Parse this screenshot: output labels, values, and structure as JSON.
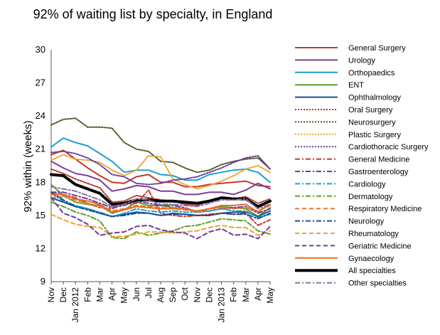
{
  "chart_data": {
    "type": "line",
    "title": "92% of waiting list by specialty, in England",
    "ylabel": "92% within (weeks)",
    "xlabel": "",
    "ylim": [
      9,
      30
    ],
    "yticks": [
      9,
      12,
      15,
      18,
      21,
      24,
      27,
      30
    ],
    "grid": false,
    "legend_position": "right",
    "x": [
      "Nov",
      "Dec",
      "Jan 2012",
      "Feb",
      "Mar",
      "Apr",
      "May",
      "Jun",
      "Jul",
      "Aug",
      "Sep",
      "Oct",
      "Nov",
      "Dec",
      "Jan 2013",
      "Feb",
      "Mar",
      "Apr",
      "May"
    ],
    "series": [
      {
        "name": "General Surgery",
        "color": "#c0392b",
        "dash": "solid",
        "width": 2,
        "values": [
          20.5,
          20.9,
          20.1,
          19.3,
          18.6,
          18.0,
          17.9,
          18.5,
          18.7,
          18.0,
          18.0,
          17.6,
          17.6,
          17.8,
          17.9,
          18.0,
          18.1,
          17.7,
          17.6
        ]
      },
      {
        "name": "Urology",
        "color": "#7d3c98",
        "dash": "solid",
        "width": 2,
        "values": [
          19.9,
          19.3,
          18.8,
          18.6,
          18.2,
          17.2,
          17.4,
          17.7,
          17.6,
          17.2,
          17.2,
          16.9,
          16.9,
          17.1,
          17.1,
          16.9,
          17.3,
          17.9,
          17.4
        ]
      },
      {
        "name": "Orthopaedics",
        "color": "#1f9ed1",
        "dash": "solid",
        "width": 2,
        "values": [
          21.2,
          22.0,
          21.6,
          21.3,
          20.6,
          19.9,
          18.9,
          19.1,
          19.1,
          18.7,
          18.6,
          18.2,
          18.2,
          18.7,
          18.9,
          19.1,
          19.2,
          18.9,
          18.0
        ]
      },
      {
        "name": "ENT",
        "color": "#5aa02c",
        "dash": "solid",
        "width": 2,
        "values": [
          17.8,
          16.8,
          16.2,
          16.0,
          15.9,
          15.2,
          15.5,
          16.2,
          15.9,
          15.9,
          15.7,
          15.6,
          15.4,
          15.6,
          15.8,
          15.7,
          15.6,
          14.9,
          15.7
        ]
      },
      {
        "name": "Ophthalmology",
        "color": "#1a4f8b",
        "dash": "solid",
        "width": 2,
        "values": [
          16.6,
          16.2,
          15.8,
          15.6,
          15.2,
          14.9,
          15.1,
          15.3,
          15.2,
          15.0,
          15.2,
          15.1,
          15.0,
          15.0,
          15.2,
          15.3,
          15.3,
          14.9,
          15.4
        ]
      },
      {
        "name": "Oral Surgery",
        "color": "#b03a2e",
        "dash": "dot",
        "width": 2,
        "values": [
          19.2,
          18.8,
          18.3,
          17.9,
          17.5,
          16.2,
          16.3,
          16.8,
          16.6,
          16.4,
          16.3,
          16.0,
          15.9,
          16.3,
          16.6,
          16.5,
          16.7,
          16.1,
          16.5
        ]
      },
      {
        "name": "Neurosurgery",
        "color": "#4d5a1e",
        "dash": "dot",
        "width": 2,
        "values": [
          23.2,
          23.7,
          23.8,
          23.0,
          23.0,
          22.9,
          21.6,
          21.0,
          20.8,
          19.9,
          19.8,
          19.3,
          18.9,
          19.1,
          19.6,
          19.9,
          20.1,
          20.2,
          19.2
        ]
      },
      {
        "name": "Plastic Surgery",
        "color": "#f0a22e",
        "dash": "dot",
        "width": 2,
        "values": [
          20.0,
          20.5,
          20.1,
          20.0,
          19.8,
          19.1,
          18.6,
          19.1,
          20.4,
          20.3,
          18.3,
          17.8,
          17.4,
          17.7,
          18.1,
          18.6,
          19.2,
          19.5,
          18.9
        ]
      },
      {
        "name": "Cardiothoracic Surgery",
        "color": "#6a3d9a",
        "dash": "dot",
        "width": 2,
        "values": [
          20.7,
          20.8,
          20.6,
          20.2,
          19.6,
          18.7,
          18.5,
          17.9,
          17.8,
          17.9,
          18.2,
          18.3,
          18.5,
          18.9,
          19.3,
          19.8,
          20.2,
          20.4,
          19.2
        ]
      },
      {
        "name": "General Medicine",
        "color": "#c0392b",
        "dash": "dashdot",
        "width": 2,
        "values": [
          17.0,
          16.9,
          16.6,
          16.1,
          15.7,
          15.6,
          16.0,
          16.1,
          17.3,
          15.2,
          15.0,
          14.9,
          15.0,
          15.1,
          15.2,
          15.1,
          15.2,
          14.1,
          14.6
        ]
      },
      {
        "name": "Gastroenterology",
        "color": "#6a3d9a",
        "dash": "dashdot",
        "width": 2,
        "values": [
          17.1,
          17.1,
          16.8,
          16.5,
          16.1,
          15.7,
          15.9,
          16.3,
          16.1,
          15.9,
          15.9,
          15.7,
          15.3,
          15.4,
          15.6,
          15.7,
          15.8,
          15.2,
          15.6
        ]
      },
      {
        "name": "Cardiology",
        "color": "#1f9ed1",
        "dash": "dashdot",
        "width": 2,
        "values": [
          17.0,
          16.3,
          15.9,
          15.6,
          15.3,
          14.9,
          15.2,
          15.6,
          15.4,
          15.3,
          15.4,
          15.3,
          15.3,
          15.4,
          15.6,
          15.4,
          15.4,
          14.8,
          15.1
        ]
      },
      {
        "name": "Dermatology",
        "color": "#5aa02c",
        "dash": "dashdot",
        "width": 2,
        "values": [
          16.2,
          15.8,
          15.3,
          15.0,
          14.5,
          13.0,
          12.9,
          13.5,
          13.2,
          13.4,
          13.6,
          14.0,
          14.1,
          14.4,
          14.7,
          14.6,
          14.5,
          13.6,
          13.3
        ]
      },
      {
        "name": "Respiratory Medicine",
        "color": "#e8743b",
        "dash": "dash",
        "width": 2,
        "values": [
          16.6,
          16.7,
          16.4,
          16.1,
          15.8,
          15.4,
          15.6,
          15.9,
          15.8,
          15.7,
          15.6,
          15.5,
          15.4,
          15.6,
          15.7,
          15.6,
          15.7,
          15.4,
          15.9
        ]
      },
      {
        "name": "Neurology",
        "color": "#1a4f8b",
        "dash": "dashdot",
        "width": 2,
        "values": [
          17.1,
          16.4,
          15.8,
          15.5,
          15.2,
          14.9,
          15.0,
          15.2,
          15.2,
          15.0,
          15.1,
          15.1,
          15.0,
          15.0,
          15.2,
          15.1,
          15.1,
          14.7,
          15.2
        ]
      },
      {
        "name": "Rheumatology",
        "color": "#f0a22e",
        "dash": "dash",
        "width": 2,
        "values": [
          15.1,
          14.6,
          14.2,
          14.0,
          13.9,
          13.1,
          13.1,
          13.3,
          13.5,
          13.5,
          13.4,
          13.5,
          13.6,
          13.9,
          14.1,
          13.9,
          13.9,
          13.2,
          13.6
        ]
      },
      {
        "name": "Geriatric Medicine",
        "color": "#6a3d9a",
        "dash": "dash",
        "width": 2,
        "values": [
          16.6,
          15.2,
          14.8,
          14.2,
          13.2,
          13.4,
          13.5,
          14.0,
          14.1,
          13.7,
          13.5,
          13.4,
          12.9,
          13.5,
          13.8,
          13.2,
          13.3,
          12.9,
          14.0
        ]
      },
      {
        "name": "Gynaecology",
        "color": "#ee6a1a",
        "dash": "solid",
        "width": 2,
        "values": [
          16.9,
          16.9,
          16.5,
          16.3,
          16.0,
          15.3,
          15.5,
          15.8,
          15.7,
          15.6,
          15.6,
          15.6,
          15.3,
          15.6,
          15.9,
          15.9,
          16.0,
          15.3,
          16.0
        ]
      },
      {
        "name": "All specialties",
        "color": "#000000",
        "dash": "solid",
        "width": 4,
        "values": [
          18.7,
          18.6,
          17.8,
          17.4,
          17.0,
          16.0,
          16.1,
          16.4,
          16.4,
          16.3,
          16.3,
          16.2,
          16.1,
          16.3,
          16.6,
          16.5,
          16.5,
          15.8,
          16.3
        ]
      },
      {
        "name": "Other specialties",
        "color": "#8e6fa8",
        "dash": "dashdot",
        "width": 2,
        "values": [
          17.6,
          17.4,
          17.2,
          16.8,
          16.4,
          15.8,
          16.0,
          16.5,
          16.4,
          16.0,
          16.0,
          15.9,
          15.8,
          16.1,
          16.4,
          16.4,
          16.5,
          15.6,
          16.0
        ]
      }
    ]
  }
}
